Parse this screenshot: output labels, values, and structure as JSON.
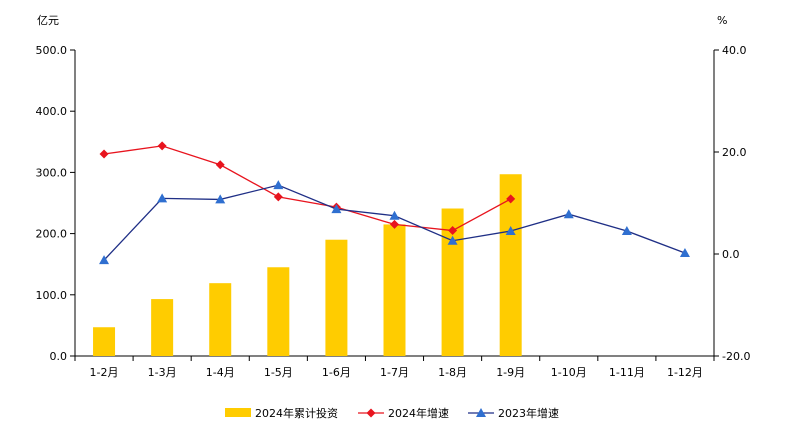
{
  "chart_data": {
    "type": "bar+line",
    "title": "",
    "left_axis": {
      "unit": "亿元",
      "ylim": [
        0,
        500
      ],
      "ticks": [
        "0.0",
        "100.0",
        "200.0",
        "300.0",
        "400.0",
        "500.0"
      ],
      "tick_values": [
        0,
        100,
        200,
        300,
        400,
        500
      ]
    },
    "right_axis": {
      "unit": "%",
      "ylim": [
        -20,
        40
      ],
      "ticks": [
        "-20.0",
        "0.0",
        "20.0",
        "40.0"
      ],
      "tick_values": [
        -20,
        0,
        20,
        40
      ]
    },
    "categories": [
      "1-2月",
      "1-3月",
      "1-4月",
      "1-5月",
      "1-6月",
      "1-7月",
      "1-8月",
      "1-9月",
      "1-10月",
      "1-11月",
      "1-12月"
    ],
    "series": [
      {
        "name": "2024年累计投资",
        "kind": "bar",
        "axis": "left",
        "color": "#FFCC00",
        "values": [
          47,
          93,
          119,
          145,
          190,
          215,
          241,
          297,
          null,
          null,
          null
        ]
      },
      {
        "name": "2024年增速",
        "kind": "line",
        "axis": "right",
        "color": "#E8141E",
        "marker": "diamond",
        "values": [
          19.6,
          21.2,
          17.5,
          11.2,
          9.2,
          5.8,
          4.6,
          10.8,
          null,
          null,
          null
        ]
      },
      {
        "name": "2023年增速",
        "kind": "line",
        "axis": "right",
        "color": "#1F2F86",
        "marker_color": "#2F6FD0",
        "marker": "triangle",
        "values": [
          -1.2,
          10.9,
          10.7,
          13.5,
          8.8,
          7.5,
          2.6,
          4.5,
          7.8,
          4.5,
          0.2
        ]
      }
    ],
    "legend": {
      "position": "bottom-center",
      "entries": [
        "2024年累计投资",
        "2024年增速",
        "2023年增速"
      ]
    }
  }
}
